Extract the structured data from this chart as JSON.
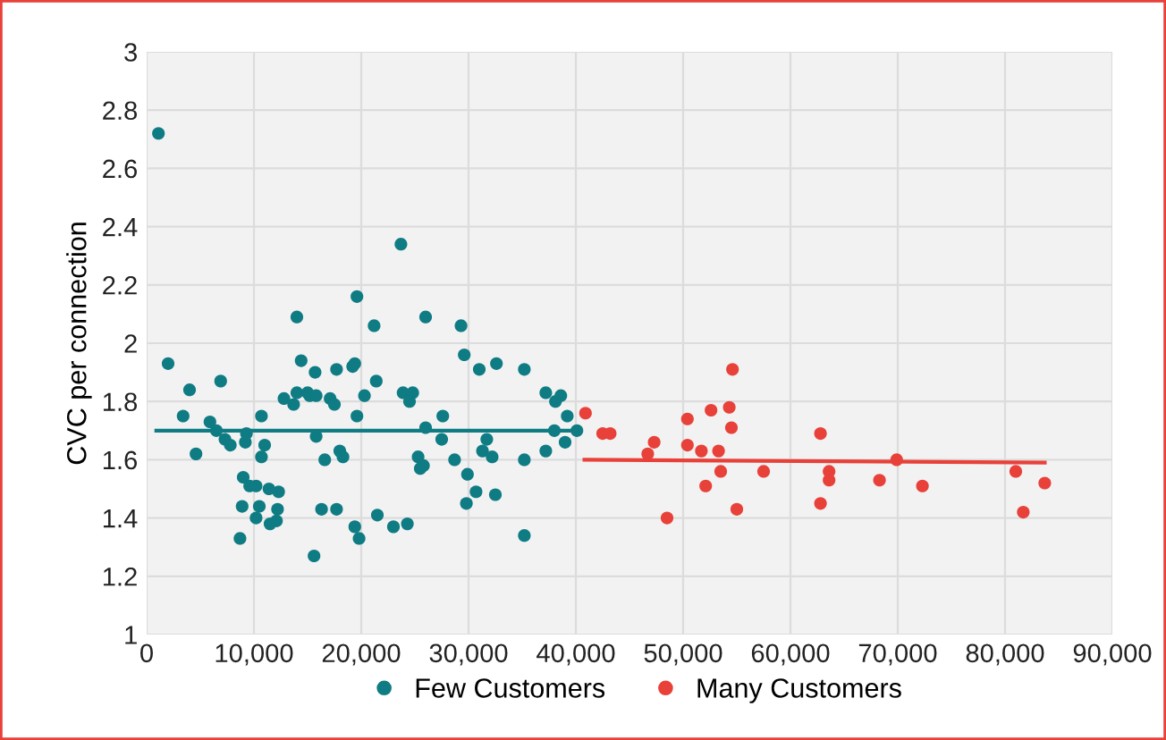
{
  "chart_data": {
    "type": "scatter",
    "ylabel": "CVC per connection",
    "xlim": [
      0,
      90000
    ],
    "ylim": [
      1,
      3
    ],
    "xticks": [
      0,
      {
        "value": 10000,
        "label": "10,000"
      },
      {
        "value": 20000,
        "label": "20,000"
      },
      {
        "value": 30000,
        "label": "30,000"
      },
      {
        "value": 40000,
        "label": "40,000"
      },
      {
        "value": 50000,
        "label": "50,000"
      },
      {
        "value": 60000,
        "label": "60,000"
      },
      {
        "value": 70000,
        "label": "70,000"
      },
      {
        "value": 80000,
        "label": "80,000"
      },
      {
        "value": 90000,
        "label": "90,000"
      }
    ],
    "yticks": [
      1,
      1.2,
      1.4,
      1.6,
      1.8,
      2,
      2.2,
      2.4,
      2.6,
      2.8,
      3
    ],
    "grid": true,
    "legend": "bottom",
    "marker": "circle",
    "series": [
      {
        "name": "Few Customers",
        "color": "#0f7c84",
        "x": [
          1100,
          2000,
          4000,
          6900,
          3400,
          4600,
          5900,
          6500,
          7300,
          7800,
          9300,
          9200,
          10700,
          11000,
          10700,
          9000,
          9600,
          10200,
          11400,
          12300,
          8900,
          10500,
          12200,
          10200,
          11500,
          12100,
          8700,
          15600,
          16300,
          17700,
          19400,
          19800,
          21500,
          14000,
          19600,
          21200,
          14400,
          15700,
          17700,
          19200,
          19400,
          21400,
          20300,
          14000,
          12800,
          13700,
          15000,
          15200,
          15800,
          17100,
          17500,
          19600,
          15800,
          16600,
          18000,
          18300,
          23700,
          26000,
          29300,
          29600,
          31000,
          32600,
          35200,
          23900,
          24800,
          24500,
          27600,
          26000,
          27500,
          31700,
          31300,
          32200,
          28700,
          25300,
          25500,
          25800,
          29900,
          35200,
          37200,
          30700,
          32500,
          29800,
          23000,
          24300,
          35200,
          37200,
          38600,
          38100,
          39200,
          38000,
          40100,
          39000
        ],
        "values": [
          2.72,
          1.93,
          1.84,
          1.87,
          1.75,
          1.62,
          1.73,
          1.7,
          1.67,
          1.65,
          1.69,
          1.66,
          1.75,
          1.65,
          1.61,
          1.54,
          1.51,
          1.51,
          1.5,
          1.49,
          1.44,
          1.44,
          1.43,
          1.4,
          1.38,
          1.39,
          1.33,
          1.27,
          1.43,
          1.43,
          1.37,
          1.33,
          1.41,
          2.09,
          2.16,
          2.06,
          1.94,
          1.9,
          1.91,
          1.92,
          1.93,
          1.87,
          1.82,
          1.83,
          1.81,
          1.79,
          1.83,
          1.82,
          1.82,
          1.81,
          1.79,
          1.75,
          1.68,
          1.6,
          1.63,
          1.61,
          2.34,
          2.09,
          2.06,
          1.96,
          1.91,
          1.93,
          1.91,
          1.83,
          1.83,
          1.8,
          1.75,
          1.71,
          1.67,
          1.67,
          1.63,
          1.61,
          1.6,
          1.61,
          1.57,
          1.58,
          1.55,
          1.6,
          1.63,
          1.49,
          1.48,
          1.45,
          1.37,
          1.38,
          1.34,
          1.83,
          1.82,
          1.8,
          1.75,
          1.7,
          1.7,
          1.66
        ]
      },
      {
        "name": "Many Customers",
        "color": "#e8413a",
        "x": [
          40900,
          42500,
          43200,
          47300,
          46700,
          48500,
          50400,
          50400,
          51700,
          52600,
          54300,
          54600,
          54500,
          53300,
          53500,
          52100,
          55000,
          57500,
          62800,
          63600,
          63600,
          62800,
          68300,
          69900,
          72300,
          81000,
          81700,
          83700
        ],
        "values": [
          1.76,
          1.69,
          1.69,
          1.66,
          1.62,
          1.4,
          1.74,
          1.65,
          1.63,
          1.77,
          1.78,
          1.91,
          1.71,
          1.63,
          1.56,
          1.51,
          1.43,
          1.56,
          1.69,
          1.56,
          1.53,
          1.45,
          1.53,
          1.6,
          1.51,
          1.56,
          1.42,
          1.52
        ]
      },
      {
        "type": "line",
        "color": "#0f7c84",
        "marker": "none",
        "x": [
          900,
          40200
        ],
        "values": [
          1.7,
          1.7
        ]
      },
      {
        "type": "line",
        "color": "#e8413a",
        "marker": "none",
        "x": [
          40800,
          83700
        ],
        "values": [
          1.6,
          1.59
        ]
      }
    ]
  }
}
